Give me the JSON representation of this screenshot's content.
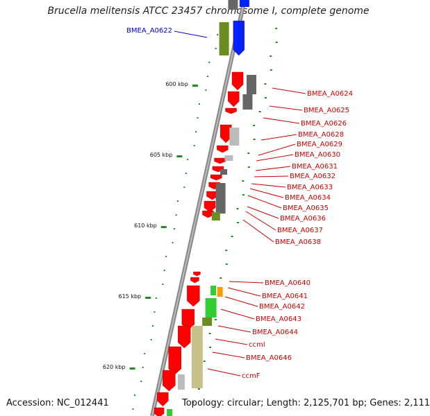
{
  "header": {
    "title": "Brucella melitensis ATCC 23457 chromosome I, complete genome"
  },
  "footer": {
    "accession": "Accession: NC_012441",
    "summary": "Topology: circular; Length: 2,125,701 bp; Genes: 2,111"
  },
  "scale_labels": [
    "600 kbp",
    "605 kbp",
    "610 kbp",
    "615 kbp",
    "620 kbp"
  ],
  "gene_labels": {
    "left": [
      {
        "text": "BMEA_A0622",
        "color": "#0000cc"
      }
    ],
    "right": [
      {
        "text": "BMEA_A0624"
      },
      {
        "text": "BMEA_A0625"
      },
      {
        "text": "BMEA_A0626"
      },
      {
        "text": "BMEA_A0628"
      },
      {
        "text": "BMEA_A0629"
      },
      {
        "text": "BMEA_A0630"
      },
      {
        "text": "BMEA_A0631"
      },
      {
        "text": "BMEA_A0632"
      },
      {
        "text": "BMEA_A0633"
      },
      {
        "text": "BMEA_A0634"
      },
      {
        "text": "BMEA_A0635"
      },
      {
        "text": "BMEA_A0636"
      },
      {
        "text": "BMEA_A0637"
      },
      {
        "text": "BMEA_A0638"
      },
      {
        "text": "BMEA_A0640"
      },
      {
        "text": "BMEA_A0641"
      },
      {
        "text": "BMEA_A0642"
      },
      {
        "text": "BMEA_A0643"
      },
      {
        "text": "BMEA_A0644"
      },
      {
        "text": "ccmI"
      },
      {
        "text": "BMEA_A0646"
      },
      {
        "text": "ccmF"
      }
    ]
  },
  "colors": {
    "cds": "#ff0000",
    "blast_dark": "#666666",
    "blast_light": "#bbbbbb",
    "cog_olive": "#6b8e23",
    "cog_green": "#33cc33",
    "cog_khaki": "#c8c08a",
    "cog_orange": "#ff9900",
    "blue": "#0022ff",
    "backbone": "#888888",
    "label_red": "#cc0000",
    "tick_green": "#228b22"
  }
}
